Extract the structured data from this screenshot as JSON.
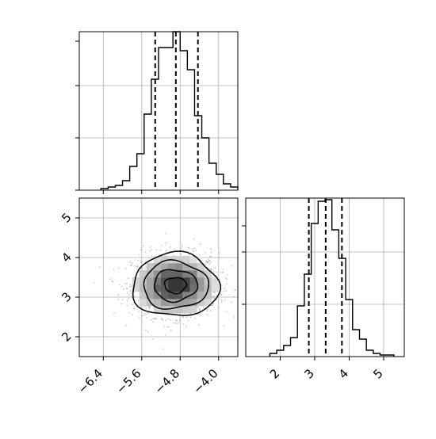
{
  "chart_data": [
    {
      "type": "histogram",
      "panel": "top-left",
      "xlim": [
        -6.9,
        -3.6
      ],
      "ylim": [
        0,
        1.0
      ],
      "grid": true,
      "bins": [
        {
          "x0": -6.45,
          "x1": -6.3,
          "h": 0.01
        },
        {
          "x0": -6.3,
          "x1": -6.15,
          "h": 0.02
        },
        {
          "x0": -6.15,
          "x1": -6.0,
          "h": 0.03
        },
        {
          "x0": -6.0,
          "x1": -5.85,
          "h": 0.06
        },
        {
          "x0": -5.85,
          "x1": -5.7,
          "h": 0.15
        },
        {
          "x0": -5.7,
          "x1": -5.55,
          "h": 0.23
        },
        {
          "x0": -5.55,
          "x1": -5.4,
          "h": 0.48
        },
        {
          "x0": -5.4,
          "x1": -5.25,
          "h": 0.7
        },
        {
          "x0": -5.25,
          "x1": -5.1,
          "h": 0.9
        },
        {
          "x0": -5.1,
          "x1": -4.95,
          "h": 0.9
        },
        {
          "x0": -4.95,
          "x1": -4.8,
          "h": 1.0
        },
        {
          "x0": -4.8,
          "x1": -4.65,
          "h": 0.88
        },
        {
          "x0": -4.65,
          "x1": -4.5,
          "h": 0.76
        },
        {
          "x0": -4.5,
          "x1": -4.35,
          "h": 0.47
        },
        {
          "x0": -4.35,
          "x1": -4.2,
          "h": 0.33
        },
        {
          "x0": -4.2,
          "x1": -4.05,
          "h": 0.17
        },
        {
          "x0": -4.05,
          "x1": -3.9,
          "h": 0.1
        },
        {
          "x0": -3.9,
          "x1": -3.75,
          "h": 0.04
        },
        {
          "x0": -3.75,
          "x1": -3.6,
          "h": 0.02
        }
      ],
      "quantiles": [
        -5.32,
        -4.89,
        -4.43
      ]
    },
    {
      "type": "scatter-hist2d-contour",
      "panel": "bottom-left",
      "xlim": [
        -6.9,
        -3.6
      ],
      "ylim": [
        1.5,
        5.5
      ],
      "grid": true,
      "xticks": [
        "−6.4",
        "−5.6",
        "−4.8",
        "−4.0"
      ],
      "xtick_values": [
        -6.4,
        -5.6,
        -4.8,
        -4.0
      ],
      "yticks": [
        "2",
        "3",
        "4",
        "5"
      ],
      "ytick_values": [
        2,
        3,
        4,
        5
      ],
      "center": {
        "x": -4.9,
        "y": 3.3
      },
      "spread": {
        "x": 0.45,
        "y": 0.4
      },
      "contour_sigma_levels": [
        0.5,
        1.0,
        1.5,
        2.0
      ]
    },
    {
      "type": "histogram",
      "panel": "bottom-right",
      "xlim": [
        1.0,
        5.6
      ],
      "ylim": [
        0,
        1.0
      ],
      "grid": true,
      "xticks": [
        "2",
        "3",
        "4",
        "5"
      ],
      "xtick_values": [
        2,
        3,
        4,
        5
      ],
      "bins": [
        {
          "x0": 1.7,
          "x1": 1.9,
          "h": 0.02
        },
        {
          "x0": 1.9,
          "x1": 2.1,
          "h": 0.04
        },
        {
          "x0": 2.1,
          "x1": 2.3,
          "h": 0.07
        },
        {
          "x0": 2.3,
          "x1": 2.5,
          "h": 0.12
        },
        {
          "x0": 2.5,
          "x1": 2.7,
          "h": 0.32
        },
        {
          "x0": 2.7,
          "x1": 2.9,
          "h": 0.52
        },
        {
          "x0": 2.9,
          "x1": 3.1,
          "h": 0.84
        },
        {
          "x0": 3.1,
          "x1": 3.3,
          "h": 0.98
        },
        {
          "x0": 3.3,
          "x1": 3.5,
          "h": 0.99
        },
        {
          "x0": 3.5,
          "x1": 3.7,
          "h": 0.8
        },
        {
          "x0": 3.7,
          "x1": 3.9,
          "h": 0.62
        },
        {
          "x0": 3.9,
          "x1": 4.1,
          "h": 0.36
        },
        {
          "x0": 4.1,
          "x1": 4.3,
          "h": 0.17
        },
        {
          "x0": 4.3,
          "x1": 4.5,
          "h": 0.11
        },
        {
          "x0": 4.5,
          "x1": 4.7,
          "h": 0.04
        },
        {
          "x0": 4.7,
          "x1": 4.9,
          "h": 0.02
        },
        {
          "x0": 4.9,
          "x1": 5.1,
          "h": 0.01
        },
        {
          "x0": 5.1,
          "x1": 5.3,
          "h": 0.01
        }
      ],
      "quantiles": [
        2.83,
        3.32,
        3.79
      ]
    }
  ]
}
